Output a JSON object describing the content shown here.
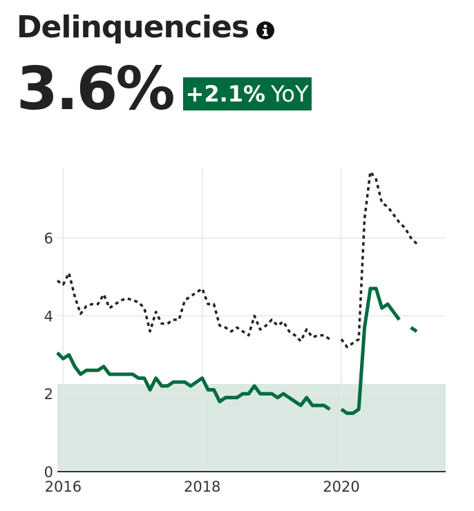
{
  "header": {
    "title": "Delinquencies",
    "info_icon": "info-icon",
    "value": "3.6%",
    "yoy_change": "+2.1%",
    "yoy_label": "YoY"
  },
  "colors": {
    "primary": "#006b3f",
    "comparison": "#222222",
    "band": "#d9e9e1",
    "grid": "#e6e6e6",
    "text": "#222222"
  },
  "chart_data": {
    "type": "line",
    "title": "",
    "xlabel": "",
    "ylabel": "",
    "xlim": [
      "2015-12-01",
      "2021-07-01"
    ],
    "ylim": [
      0,
      7.8
    ],
    "x_ticks": [
      "2016",
      "2018",
      "2020"
    ],
    "y_ticks": [
      0,
      2,
      4,
      6
    ],
    "grid": true,
    "shaded_band": {
      "from": 0,
      "to": 2.25
    },
    "series": [
      {
        "style": "dotted",
        "color": "#222222",
        "points": [
          [
            "2015-12",
            4.9
          ],
          [
            "2016-01",
            4.8
          ],
          [
            "2016-02",
            5.1
          ],
          [
            "2016-03",
            4.5
          ],
          [
            "2016-04",
            4.05
          ],
          [
            "2016-05",
            4.25
          ],
          [
            "2016-06",
            4.3
          ],
          [
            "2016-07",
            4.3
          ],
          [
            "2016-08",
            4.55
          ],
          [
            "2016-09",
            4.2
          ],
          [
            "2016-10",
            4.3
          ],
          [
            "2016-11",
            4.4
          ],
          [
            "2016-12",
            4.45
          ],
          [
            "2017-01",
            4.4
          ],
          [
            "2017-02",
            4.35
          ],
          [
            "2017-03",
            4.2
          ],
          [
            "2017-04",
            3.6
          ],
          [
            "2017-05",
            4.1
          ],
          [
            "2017-06",
            3.8
          ],
          [
            "2017-07",
            3.8
          ],
          [
            "2017-08",
            3.9
          ],
          [
            "2017-09",
            3.9
          ],
          [
            "2017-10",
            4.4
          ],
          [
            "2017-11",
            4.5
          ],
          [
            "2017-12",
            4.6
          ],
          [
            "2018-01",
            4.7
          ],
          [
            "2018-02",
            4.3
          ],
          [
            "2018-03",
            4.3
          ],
          [
            "2018-04",
            3.75
          ],
          [
            "2018-05",
            3.7
          ],
          [
            "2018-06",
            3.6
          ],
          [
            "2018-07",
            3.7
          ],
          [
            "2018-08",
            3.6
          ],
          [
            "2018-09",
            3.5
          ],
          [
            "2018-10",
            4.0
          ],
          [
            "2018-11",
            3.65
          ],
          [
            "2018-12",
            3.75
          ],
          [
            "2019-01",
            3.9
          ],
          [
            "2019-02",
            3.75
          ],
          [
            "2019-03",
            3.85
          ],
          [
            "2019-04",
            3.6
          ],
          [
            "2019-05",
            3.5
          ],
          [
            "2019-06",
            3.35
          ],
          [
            "2019-07",
            3.65
          ],
          [
            "2019-08",
            3.45
          ],
          [
            "2019-09",
            3.5
          ],
          [
            "2019-10",
            3.5
          ],
          [
            "2019-11",
            3.4
          ],
          [
            null,
            null
          ],
          [
            "2020-01",
            3.4
          ],
          [
            "2020-02",
            3.2
          ],
          [
            "2020-03",
            3.3
          ],
          [
            "2020-04",
            3.4
          ],
          [
            "2020-05",
            6.5
          ],
          [
            "2020-06",
            7.7
          ],
          [
            "2020-07",
            7.5
          ],
          [
            "2020-08",
            6.9
          ],
          [
            "2020-09",
            6.8
          ],
          [
            "2020-10",
            6.6
          ],
          [
            "2020-11",
            6.4
          ],
          [
            "2020-12",
            6.25
          ],
          [
            "2021-01",
            6.0
          ],
          [
            "2021-02",
            5.85
          ]
        ]
      },
      {
        "style": "solid",
        "color": "#006b3f",
        "points": [
          [
            "2015-12",
            3.05
          ],
          [
            "2016-01",
            2.9
          ],
          [
            "2016-02",
            3.0
          ],
          [
            "2016-03",
            2.7
          ],
          [
            "2016-04",
            2.5
          ],
          [
            "2016-05",
            2.6
          ],
          [
            "2016-06",
            2.6
          ],
          [
            "2016-07",
            2.6
          ],
          [
            "2016-08",
            2.7
          ],
          [
            "2016-09",
            2.5
          ],
          [
            "2016-10",
            2.5
          ],
          [
            "2016-11",
            2.5
          ],
          [
            "2016-12",
            2.5
          ],
          [
            "2017-01",
            2.5
          ],
          [
            "2017-02",
            2.4
          ],
          [
            "2017-03",
            2.4
          ],
          [
            "2017-04",
            2.1
          ],
          [
            "2017-05",
            2.4
          ],
          [
            "2017-06",
            2.2
          ],
          [
            "2017-07",
            2.2
          ],
          [
            "2017-08",
            2.3
          ],
          [
            "2017-09",
            2.3
          ],
          [
            "2017-10",
            2.3
          ],
          [
            "2017-11",
            2.2
          ],
          [
            "2017-12",
            2.3
          ],
          [
            "2018-01",
            2.4
          ],
          [
            "2018-02",
            2.1
          ],
          [
            "2018-03",
            2.1
          ],
          [
            "2018-04",
            1.8
          ],
          [
            "2018-05",
            1.9
          ],
          [
            "2018-06",
            1.9
          ],
          [
            "2018-07",
            1.9
          ],
          [
            "2018-08",
            2.0
          ],
          [
            "2018-09",
            2.0
          ],
          [
            "2018-10",
            2.2
          ],
          [
            "2018-11",
            2.0
          ],
          [
            "2018-12",
            2.0
          ],
          [
            "2019-01",
            2.0
          ],
          [
            "2019-02",
            1.9
          ],
          [
            "2019-03",
            2.0
          ],
          [
            "2019-04",
            1.9
          ],
          [
            "2019-05",
            1.8
          ],
          [
            "2019-06",
            1.7
          ],
          [
            "2019-07",
            1.9
          ],
          [
            "2019-08",
            1.7
          ],
          [
            "2019-09",
            1.7
          ],
          [
            "2019-10",
            1.7
          ],
          [
            "2019-11",
            1.6
          ],
          [
            null,
            null
          ],
          [
            "2020-01",
            1.6
          ],
          [
            "2020-02",
            1.5
          ],
          [
            "2020-03",
            1.5
          ],
          [
            "2020-04",
            1.6
          ],
          [
            "2020-05",
            3.7
          ],
          [
            "2020-06",
            4.7
          ],
          [
            "2020-07",
            4.7
          ],
          [
            "2020-08",
            4.2
          ],
          [
            "2020-09",
            4.3
          ],
          [
            "2020-10",
            4.1
          ],
          [
            "2020-11",
            3.9
          ],
          [
            null,
            null
          ],
          [
            "2021-01",
            3.7
          ],
          [
            "2021-02",
            3.6
          ]
        ]
      }
    ]
  }
}
